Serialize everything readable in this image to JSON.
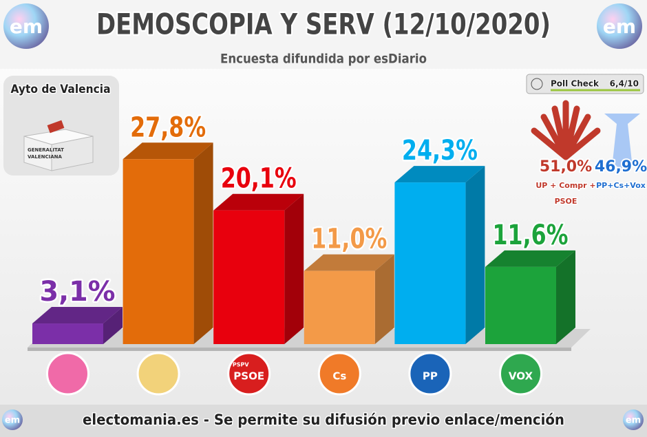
{
  "header": {
    "title": "DEMOSCOPIA Y SERV (12/10/2020)",
    "subtitle": "Encuesta difundida por esDiario",
    "logo": "em"
  },
  "region": "Ayto de Valencia",
  "ballot_box": [
    "GENERALITAT",
    "VALENCIANA"
  ],
  "poll_check": {
    "label": "Poll Check",
    "score": "6,4/10"
  },
  "blocs": [
    {
      "share": "51,0%",
      "parties": [
        "UP + Compr +",
        "PSOE"
      ],
      "color": "#c0392b"
    },
    {
      "share": "46,9%",
      "parties": [
        "PP+Cs+Vox"
      ],
      "color": "#1f6fd1"
    }
  ],
  "footer": "electomania.es - Se permite su difusión previo enlace/mención",
  "chart_data": {
    "type": "bar3d",
    "categories": [
      null,
      null,
      "PSOE",
      "Cs",
      "PP",
      "VOX"
    ],
    "category_sublabels": [
      null,
      null,
      "PSPV",
      null,
      null,
      null
    ],
    "values": [
      3.1,
      27.8,
      20.1,
      11.0,
      24.3,
      11.6
    ],
    "value_labels": [
      "3,1%",
      "27,8%",
      "20,1%",
      "11,0%",
      "24,3%",
      "11,6%"
    ],
    "colors": [
      "#7b2fa8",
      "#e36c0a",
      "#e8000d",
      "#f39a48",
      "#00aeef",
      "#1ca33b"
    ],
    "logo_colors": [
      "#f06aa8",
      "#f2d27a",
      "#d81e1e",
      "#f07a28",
      "#1a64b8",
      "#2fa84f"
    ],
    "ylim": [
      0,
      30
    ]
  }
}
